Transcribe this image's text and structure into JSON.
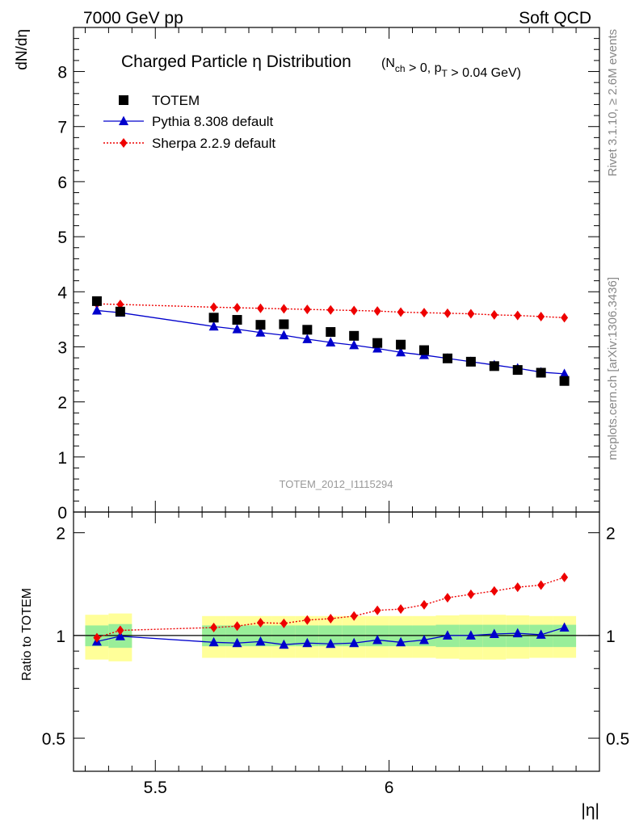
{
  "header": {
    "left": "7000 GeV pp",
    "right": "Soft QCD"
  },
  "side_labels": {
    "rivet": "Rivet 3.1.10, ≥ 2.6M events",
    "mcplots": "mcplots.cern.ch [arXiv:1306.3436]"
  },
  "chart_data": [
    {
      "type": "scatter",
      "panel": "main",
      "title_main": "Charged Particle η Distribution",
      "title_cuts": "(N_ch > 0, p_T > 0.04 GeV)",
      "ylabel": "dN/dη",
      "xlabel": "|η|",
      "watermark": "TOTEM_2012_I1115294",
      "xlim": [
        5.325,
        6.45
      ],
      "ylim": [
        0,
        8.8
      ],
      "yticks": [
        0,
        1,
        2,
        3,
        4,
        5,
        6,
        7,
        8
      ],
      "ytick_labels": [
        "0",
        "1",
        "2",
        "3",
        "4",
        "5",
        "6",
        "7",
        "8"
      ],
      "legend_position": "top-left",
      "series": [
        {
          "name": "TOTEM",
          "style": "points",
          "marker": "square",
          "color": "#000000",
          "x": [
            5.375,
            5.425,
            5.625,
            5.675,
            5.725,
            5.775,
            5.825,
            5.875,
            5.925,
            5.975,
            6.025,
            6.075,
            6.125,
            6.175,
            6.225,
            6.275,
            6.325,
            6.375
          ],
          "y": [
            3.83,
            3.64,
            3.53,
            3.49,
            3.4,
            3.41,
            3.31,
            3.27,
            3.2,
            3.07,
            3.04,
            2.94,
            2.79,
            2.73,
            2.65,
            2.58,
            2.53,
            2.38
          ]
        },
        {
          "name": "Pythia 8.308 default",
          "style": "line",
          "marker": "triangle",
          "color": "#0000cc",
          "x": [
            5.375,
            5.425,
            5.625,
            5.675,
            5.725,
            5.775,
            5.825,
            5.875,
            5.925,
            5.975,
            6.025,
            6.075,
            6.125,
            6.175,
            6.225,
            6.275,
            6.325,
            6.375
          ],
          "y": [
            3.66,
            3.62,
            3.37,
            3.32,
            3.26,
            3.21,
            3.14,
            3.08,
            3.03,
            2.97,
            2.9,
            2.85,
            2.79,
            2.73,
            2.67,
            2.61,
            2.54,
            2.51
          ]
        },
        {
          "name": "Sherpa 2.2.9 default",
          "style": "dotted",
          "marker": "diamond",
          "color": "#ee0000",
          "x": [
            5.375,
            5.425,
            5.625,
            5.675,
            5.725,
            5.775,
            5.825,
            5.875,
            5.925,
            5.975,
            6.025,
            6.075,
            6.125,
            6.175,
            6.225,
            6.275,
            6.325,
            6.375
          ],
          "y": [
            3.78,
            3.77,
            3.72,
            3.71,
            3.7,
            3.69,
            3.68,
            3.67,
            3.66,
            3.65,
            3.63,
            3.62,
            3.61,
            3.6,
            3.58,
            3.57,
            3.55,
            3.53
          ]
        }
      ]
    },
    {
      "type": "line",
      "panel": "ratio",
      "ylabel": "Ratio to TOTEM",
      "xlim": [
        5.325,
        6.45
      ],
      "ylim": [
        0.4,
        2.3
      ],
      "yscale": "log",
      "yticks": [
        0.5,
        1,
        2
      ],
      "ytick_labels": [
        "0.5",
        "1",
        "2"
      ],
      "xticks": [
        5.5,
        6
      ],
      "xtick_labels": [
        "5.5",
        "6"
      ],
      "reference_line": 1,
      "uncertainty_bands": {
        "x_low": [
          5.35,
          5.4,
          5.6,
          5.65,
          5.7,
          5.75,
          5.8,
          5.85,
          5.9,
          5.95,
          6.0,
          6.05,
          6.1,
          6.15,
          6.2,
          6.25,
          6.3,
          6.35
        ],
        "x_high": [
          5.4,
          5.45,
          5.65,
          5.7,
          5.75,
          5.8,
          5.85,
          5.9,
          5.95,
          6.0,
          6.05,
          6.1,
          6.15,
          6.2,
          6.25,
          6.3,
          6.35,
          6.4
        ],
        "stat_half_width": [
          0.07,
          0.08,
          0.07,
          0.07,
          0.07,
          0.07,
          0.07,
          0.07,
          0.07,
          0.07,
          0.07,
          0.07,
          0.075,
          0.075,
          0.075,
          0.075,
          0.075,
          0.075
        ],
        "total_half_width": [
          0.15,
          0.16,
          0.14,
          0.14,
          0.14,
          0.14,
          0.14,
          0.14,
          0.14,
          0.14,
          0.14,
          0.14,
          0.145,
          0.15,
          0.15,
          0.145,
          0.14,
          0.14
        ],
        "stat_color": "#99ee99",
        "total_color": "#ffff99"
      },
      "series": [
        {
          "name": "Pythia 8.308 default",
          "color": "#0000cc",
          "marker": "triangle",
          "x": [
            5.375,
            5.425,
            5.625,
            5.675,
            5.725,
            5.775,
            5.825,
            5.875,
            5.925,
            5.975,
            6.025,
            6.075,
            6.125,
            6.175,
            6.225,
            6.275,
            6.325,
            6.375
          ],
          "y": [
            0.96,
            0.995,
            0.955,
            0.95,
            0.96,
            0.94,
            0.95,
            0.945,
            0.95,
            0.97,
            0.955,
            0.97,
            1.0,
            1.0,
            1.01,
            1.015,
            1.005,
            1.055
          ]
        },
        {
          "name": "Sherpa 2.2.9 default",
          "color": "#ee0000",
          "marker": "diamond",
          "x": [
            5.375,
            5.425,
            5.625,
            5.675,
            5.725,
            5.775,
            5.825,
            5.875,
            5.925,
            5.975,
            6.025,
            6.075,
            6.125,
            6.175,
            6.225,
            6.275,
            6.325,
            6.375
          ],
          "y": [
            0.985,
            1.035,
            1.055,
            1.065,
            1.09,
            1.085,
            1.11,
            1.12,
            1.14,
            1.185,
            1.195,
            1.23,
            1.29,
            1.32,
            1.35,
            1.385,
            1.405,
            1.48
          ]
        }
      ]
    }
  ]
}
